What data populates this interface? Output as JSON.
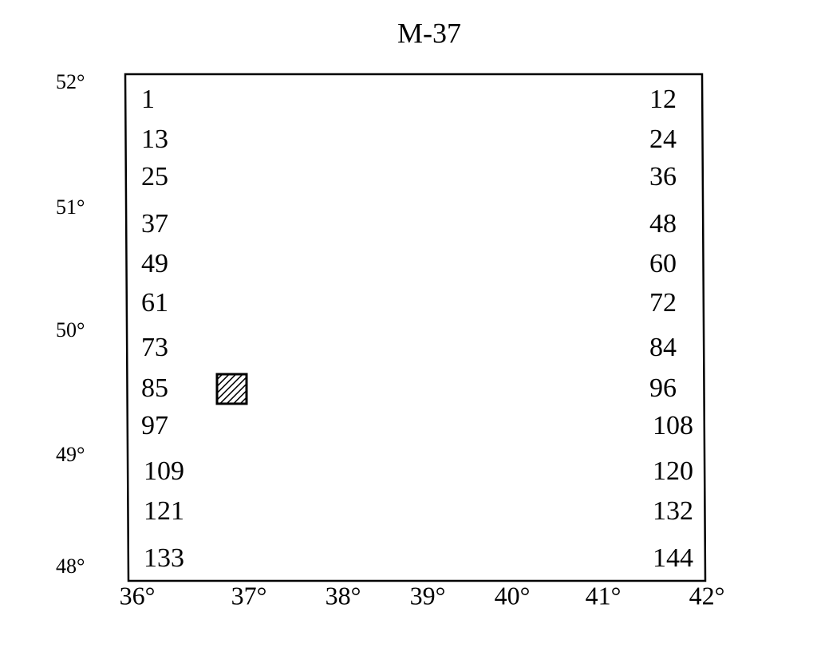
{
  "title": "M-37",
  "latitude_labels": [
    "52°",
    "51°",
    "50°",
    "49°",
    "48°"
  ],
  "longitude_labels": [
    "36°",
    "37°",
    "38°",
    "39°",
    "40°",
    "41°",
    "42°"
  ],
  "left_numbers": [
    "1",
    "13",
    "25",
    "37",
    "49",
    "61",
    "73",
    "85",
    "97",
    "109",
    "121",
    "133"
  ],
  "right_numbers": [
    "12",
    "24",
    "36",
    "48",
    "60",
    "72",
    "84",
    "96",
    "108",
    "120",
    "132",
    "144"
  ]
}
